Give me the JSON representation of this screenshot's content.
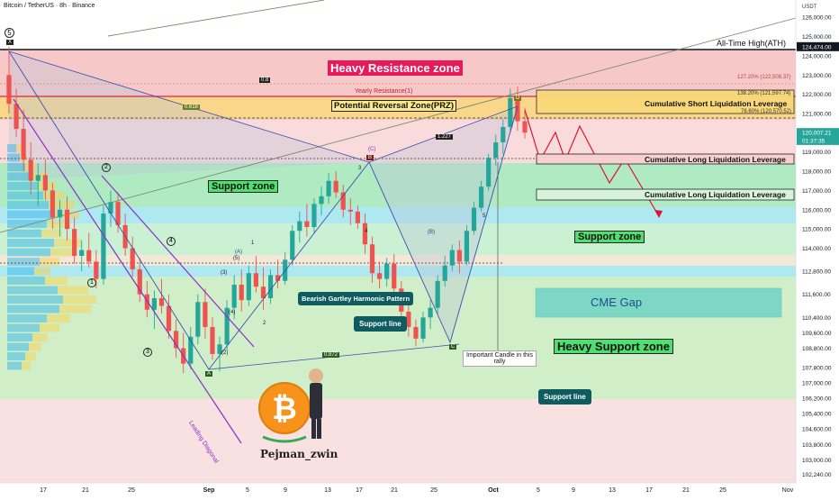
{
  "header": {
    "title": "Bitcoin / TetherUS · 8h · Binance"
  },
  "price_scale": {
    "currency": "USDT",
    "ticks": [
      "126,000.00",
      "125,000.00",
      "124,474.00",
      "124,000.00",
      "123,000.00",
      "122,000.00",
      "121,000.00",
      "120,007.21",
      "01:37:35",
      "119,000.00",
      "118,000.00",
      "117,000.00",
      "116,000.00",
      "115,000.00",
      "114,000.00",
      "112,800.00",
      "111,600.00",
      "110,400.00",
      "109,600.00",
      "108,800.00",
      "107,800.00",
      "107,000.00",
      "106,200.00",
      "105,400.00",
      "104,600.00",
      "103,800.00",
      "103,000.00",
      "102,240.00"
    ]
  },
  "time_scale": {
    "ticks": [
      "17",
      "21",
      "25",
      "Sep",
      "5",
      "9",
      "13",
      "17",
      "21",
      "25",
      "Oct",
      "5",
      "9",
      "13",
      "17",
      "21",
      "25",
      "Nov"
    ]
  },
  "zones": {
    "heavy_resistance": "Heavy Resistance zone",
    "prz": "Potential Reversal Zone(PRZ)",
    "yearly_resistance": "Yearly Resistance(1)",
    "ath": "All-Time High(ATH)",
    "support_zone_left": "Support zone",
    "support_zone_right": "Support zone",
    "cme_gap": "CME Gap",
    "heavy_support": "Heavy Support zone",
    "short_liq": "Cumulative Short Liquidation Leverage",
    "long_liq_1": "Cumulative Long Liquidation Leverage",
    "long_liq_2": "Cumulative Long Liquidation Leverage"
  },
  "callouts": {
    "pattern": "Bearish Gartley Harmonic Pattern",
    "support_line_1": "Support line",
    "support_line_2": "Support line",
    "important_candle": "Important Candle in this rally",
    "leading_diagonal": "Leading Diagonal",
    "author": "Pejman_zwin"
  },
  "fib_labels": {
    "f127": "127.20% (122,508.37)",
    "f138": "138.20% (121,597.74)",
    "f78": "78.60% (120,570.52)",
    "r0618": "0.618",
    "r08": "0.8",
    "r1227": "1.227",
    "r0872": "0.872"
  },
  "waves": {
    "w5_top": "5",
    "x": "X",
    "w2": "2",
    "w4": "4",
    "w1": "1",
    "w3": "3",
    "a": "A",
    "b": "B",
    "c": "C",
    "d": "D",
    "ma": "(A)",
    "mb": "(B)",
    "mc": "(C)",
    "m5": "(5)",
    "m3": "(3)",
    "m4": "(4)",
    "m2": "(2)",
    "sub1": "1",
    "sub2": "2",
    "sub3": "3",
    "sub4": "4",
    "sub5": "5"
  },
  "colors": {
    "resistance": "#f4b6b6",
    "prz": "#f9d97a",
    "support": "#9fe3b3",
    "cyan_band": "#9fe4ec",
    "heavy_support": "#c9eec2",
    "cme": "#63cfc4",
    "up": "#26a69a",
    "down": "#ef5350",
    "heavy_res_label": "#e8185a"
  },
  "chart_data": {
    "type": "candlestick",
    "title": "Bitcoin / TetherUS · 8h · Binance",
    "ylim": [
      101800,
      126900
    ],
    "current_price": 120007.21,
    "ath": 124474,
    "x": [
      "17",
      "21",
      "25",
      "Sep",
      "5",
      "9",
      "13",
      "17",
      "21",
      "25",
      "Oct",
      "5",
      "9",
      "13",
      "17",
      "21",
      "25",
      "Nov"
    ],
    "series": [
      {
        "ohlc": [
          [
            123000,
            124474,
            121000,
            121500
          ],
          [
            121500,
            122300,
            119800,
            120200
          ],
          [
            120200,
            121200,
            118000,
            118600
          ],
          [
            118600,
            119500,
            116800,
            117500
          ],
          [
            117500,
            118400,
            116200,
            117800
          ],
          [
            117800,
            118600,
            116500,
            117000
          ],
          [
            117000,
            117400,
            115000,
            115600
          ],
          [
            115600,
            116500,
            114600,
            116000
          ],
          [
            116000,
            116700,
            114400,
            115000
          ],
          [
            115000,
            115600,
            113200,
            113600
          ],
          [
            113600,
            114400,
            112800,
            113900
          ],
          [
            113900,
            114800,
            113000,
            113300
          ],
          [
            113300,
            113900,
            111900,
            112400
          ],
          [
            112400,
            116200,
            112100,
            115800
          ],
          [
            115800,
            117000,
            115100,
            116400
          ],
          [
            116400,
            116900,
            114800,
            115200
          ],
          [
            115200,
            115800,
            113600,
            114000
          ],
          [
            114000,
            114600,
            112500,
            112900
          ],
          [
            112900,
            113500,
            111200,
            111600
          ],
          [
            111600,
            112300,
            110400,
            110800
          ],
          [
            110800,
            111800,
            109800,
            111400
          ],
          [
            111400,
            112400,
            110600,
            111000
          ],
          [
            111000,
            111600,
            109300,
            109700
          ],
          [
            109700,
            110300,
            108300,
            108800
          ],
          [
            108800,
            109600,
            107500,
            108000
          ],
          [
            108000,
            109900,
            107700,
            109400
          ],
          [
            109400,
            111600,
            109000,
            111200
          ],
          [
            111200,
            111900,
            109300,
            109900
          ],
          [
            109900,
            110400,
            108200,
            108500
          ],
          [
            108500,
            109400,
            107600,
            109000
          ],
          [
            109000,
            111300,
            108700,
            110900
          ],
          [
            110900,
            112600,
            110300,
            112100
          ],
          [
            112100,
            112900,
            110700,
            111300
          ],
          [
            111300,
            113100,
            111000,
            112700
          ],
          [
            112700,
            113600,
            111700,
            112000
          ],
          [
            112000,
            113000,
            110800,
            111400
          ],
          [
            111400,
            112900,
            111100,
            112600
          ],
          [
            112600,
            113400,
            111900,
            112300
          ],
          [
            112300,
            113800,
            112100,
            113400
          ],
          [
            113400,
            115200,
            113100,
            114900
          ],
          [
            114900,
            115900,
            114300,
            115400
          ],
          [
            115400,
            116300,
            114600,
            115100
          ],
          [
            115100,
            116600,
            114800,
            116300
          ],
          [
            116300,
            117200,
            115700,
            116700
          ],
          [
            116700,
            117900,
            116300,
            117500
          ],
          [
            117500,
            118000,
            116600,
            116900
          ],
          [
            116900,
            117300,
            115600,
            116000
          ],
          [
            116000,
            116600,
            115200,
            115900
          ],
          [
            115900,
            116200,
            115000,
            115300
          ],
          [
            115300,
            115800,
            113700,
            114200
          ],
          [
            114200,
            114600,
            112200,
            112700
          ],
          [
            112700,
            113300,
            111900,
            112400
          ],
          [
            112400,
            113500,
            112000,
            113200
          ],
          [
            113200,
            113700,
            111500,
            111900
          ],
          [
            111900,
            112300,
            110300,
            110700
          ],
          [
            110700,
            111500,
            109400,
            109900
          ],
          [
            109900,
            110300,
            108900,
            109300
          ],
          [
            109300,
            110700,
            109100,
            110400
          ],
          [
            110400,
            111300,
            109800,
            110900
          ],
          [
            110900,
            112600,
            110600,
            112300
          ],
          [
            112300,
            113600,
            112000,
            113100
          ],
          [
            113100,
            114200,
            112800,
            113900
          ],
          [
            113900,
            114400,
            112700,
            113300
          ],
          [
            113300,
            115200,
            113100,
            114900
          ],
          [
            114900,
            116400,
            114700,
            116100
          ],
          [
            116100,
            117500,
            115900,
            117200
          ],
          [
            117200,
            118900,
            117000,
            118700
          ],
          [
            118700,
            119900,
            118300,
            119500
          ],
          [
            119500,
            120700,
            118900,
            120300
          ],
          [
            120300,
            122300,
            120000,
            121800
          ],
          [
            121800,
            122400,
            120100,
            120600
          ],
          [
            120600,
            121300,
            119700,
            120007
          ]
        ]
      }
    ]
  }
}
